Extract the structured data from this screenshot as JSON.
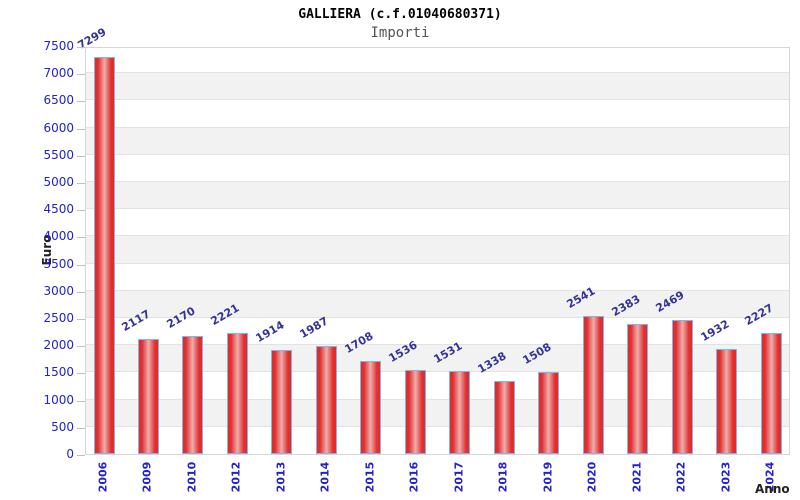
{
  "title": "GALLIERA (c.f.01040680371)",
  "subtitle": "Importi",
  "chart_data": {
    "type": "bar",
    "title": "GALLIERA (c.f.01040680371)",
    "subtitle": "Importi",
    "xlabel": "Anno",
    "ylabel": "Euro",
    "categories": [
      "2006",
      "2009",
      "2010",
      "2012",
      "2013",
      "2014",
      "2015",
      "2016",
      "2017",
      "2018",
      "2019",
      "2020",
      "2021",
      "2022",
      "2023",
      "2024"
    ],
    "values": [
      7299,
      2117,
      2170,
      2221,
      1914,
      1987,
      1708,
      1536,
      1531,
      1338,
      1508,
      2541,
      2383,
      2469,
      1932,
      2227
    ],
    "ylim": [
      0,
      7500
    ],
    "ytick_step": 500,
    "ytick_labels": [
      "0",
      "500",
      "1000",
      "1500",
      "2000",
      "2500",
      "3000",
      "3500",
      "4000",
      "4500",
      "5000",
      "5500",
      "6000",
      "6500",
      "7000",
      "7500"
    ],
    "grid": true,
    "legend": false,
    "band_fill": "striped-horizontal",
    "colors": {
      "bar_fill_edge": "#e62929",
      "bar_fill_center": "#efadad",
      "bar_border": "#82b4e8",
      "axis_tick_label": "#2222cc",
      "value_label": "#333399",
      "band_gray": "#f2f2f2",
      "gridline": "#e2e2e2",
      "plot_border": "#d6d6d6",
      "axis_title": "#222222",
      "title": "#000000",
      "subtitle": "#555555"
    }
  }
}
